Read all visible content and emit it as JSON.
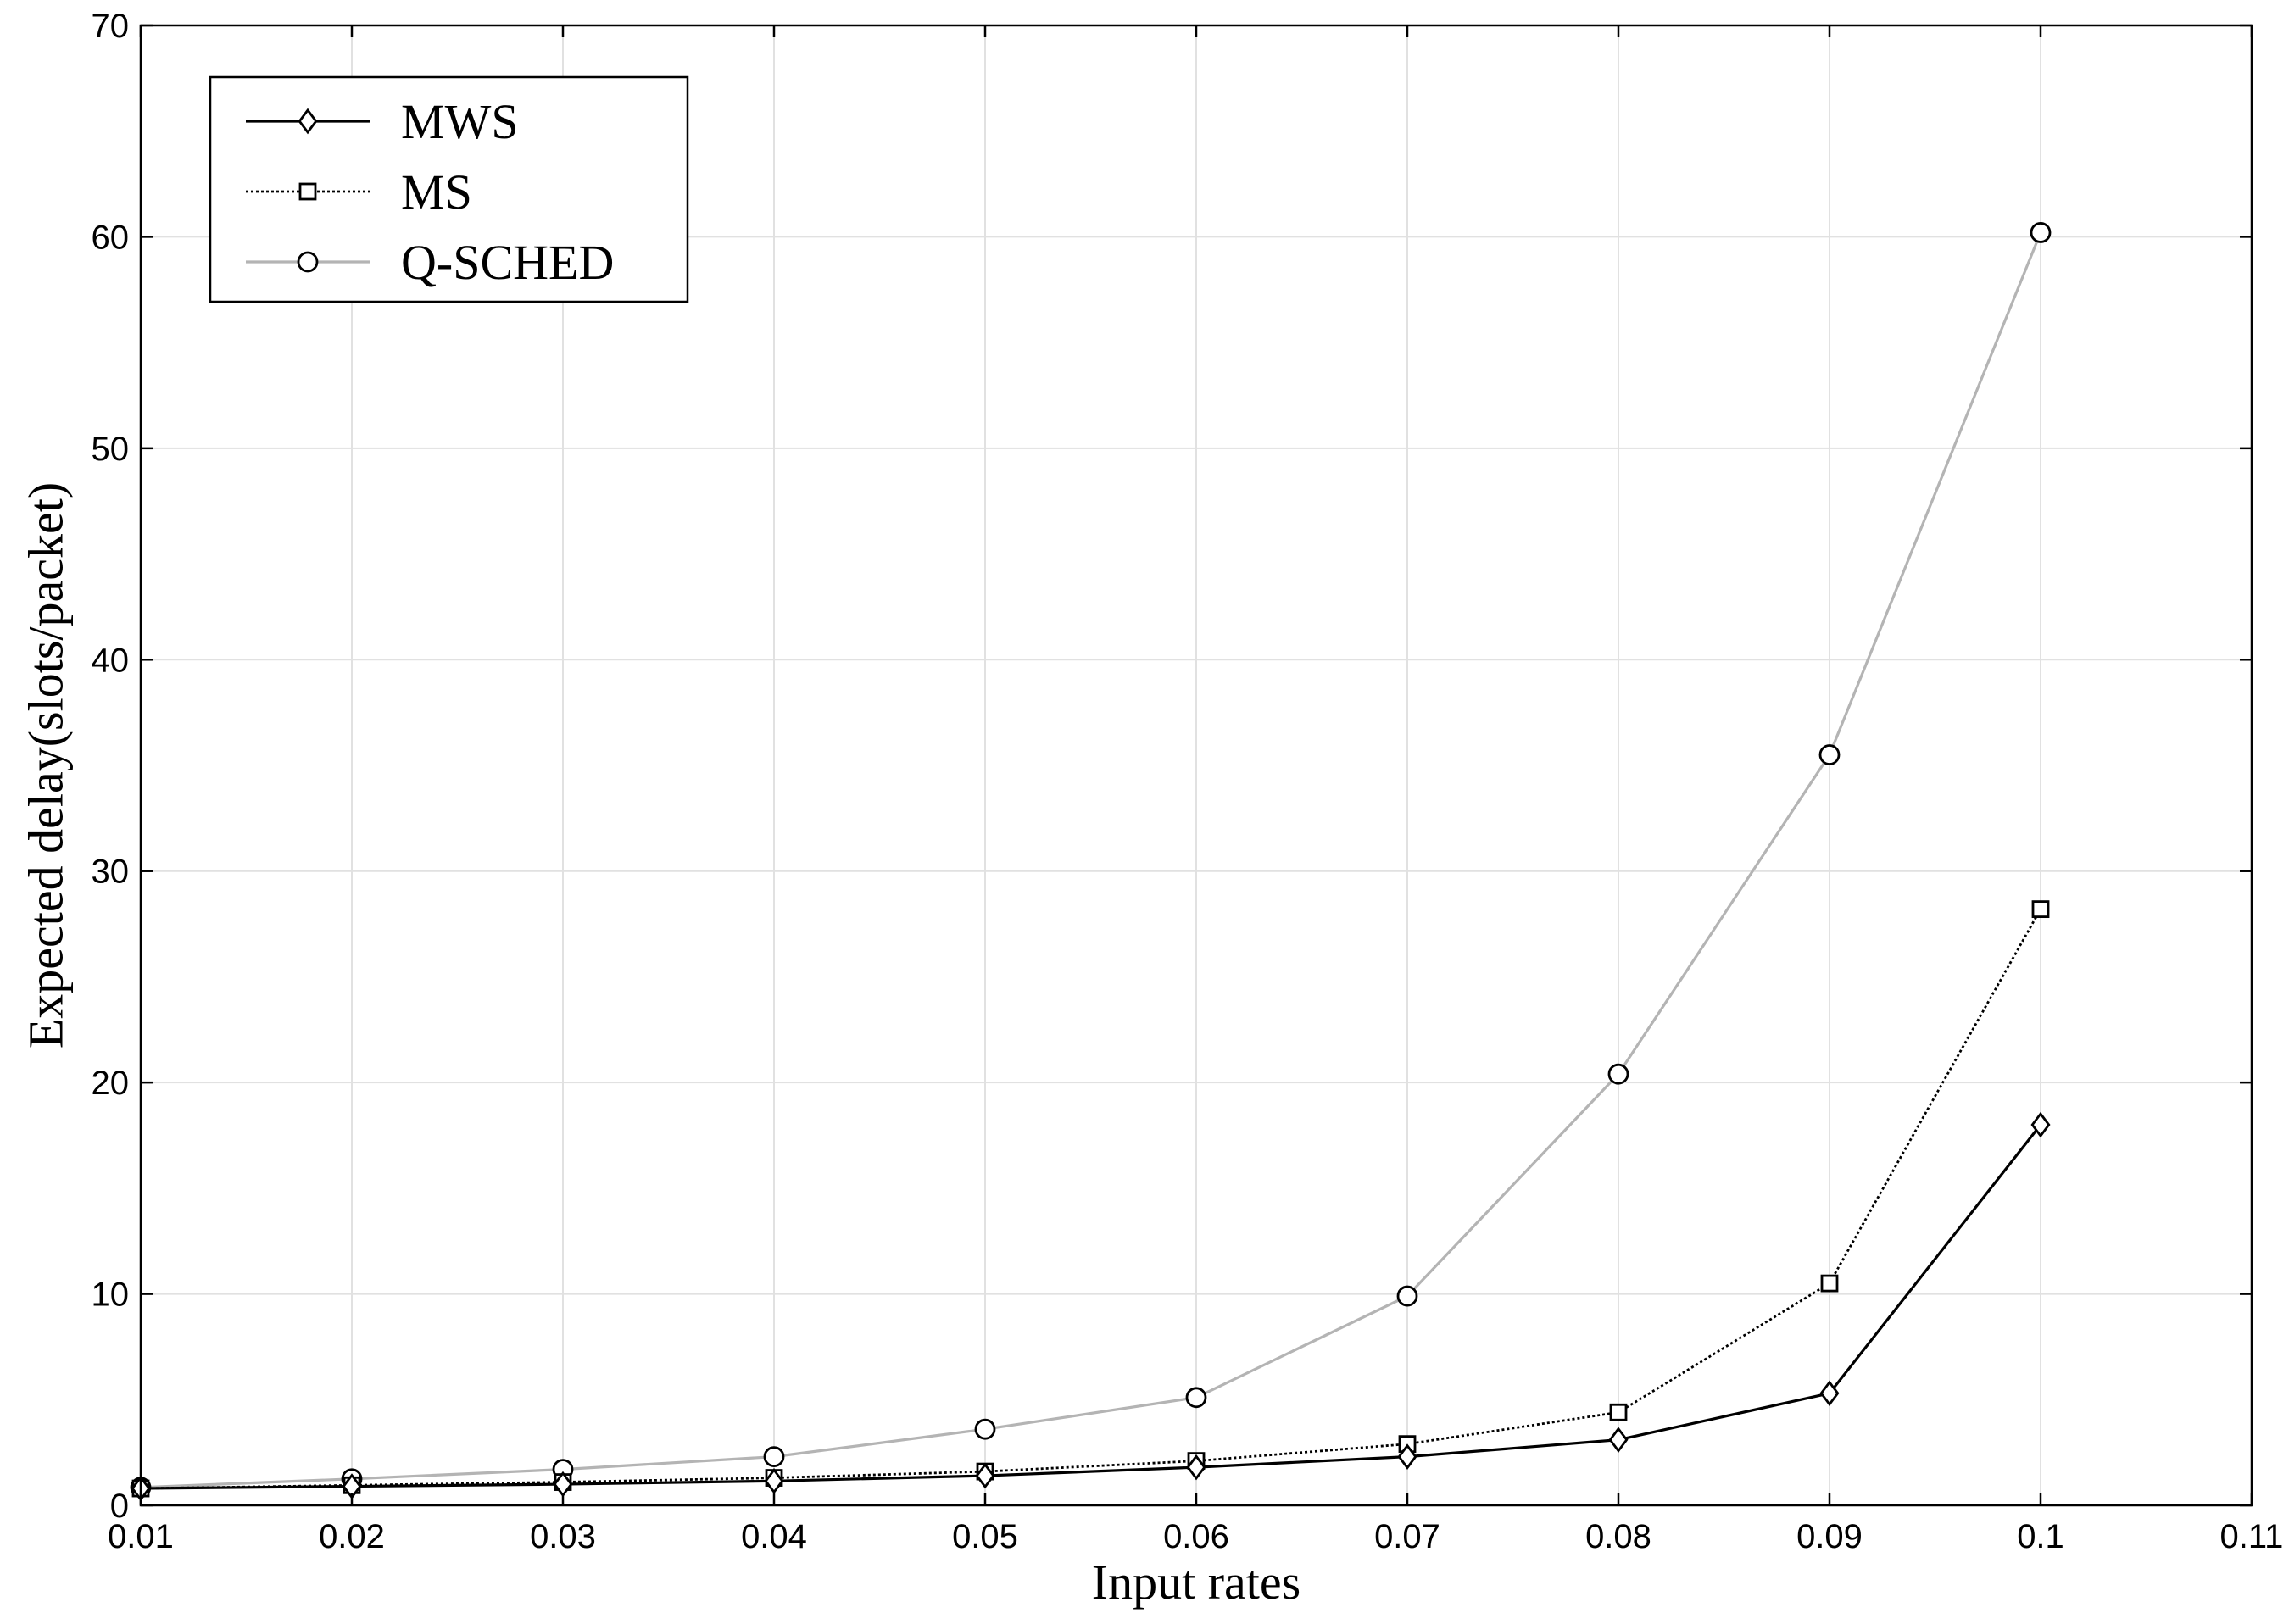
{
  "chart_data": {
    "type": "line",
    "title": "",
    "xlabel": "Input rates",
    "ylabel": "Expected delay(slots/packet)",
    "xlim": [
      0.01,
      0.11
    ],
    "ylim": [
      0,
      70
    ],
    "xticks": [
      "0.01",
      "0.02",
      "0.03",
      "0.04",
      "0.05",
      "0.06",
      "0.07",
      "0.08",
      "0.09",
      "0.1",
      "0.11"
    ],
    "yticks": [
      "0",
      "10",
      "20",
      "30",
      "40",
      "50",
      "60",
      "70"
    ],
    "grid": true,
    "legend_position": "top-left",
    "x": [
      0.01,
      0.02,
      0.03,
      0.04,
      0.05,
      0.06,
      0.07,
      0.08,
      0.09,
      0.1
    ],
    "series": [
      {
        "name": "MWS",
        "values": [
          0.8,
          0.9,
          1.0,
          1.15,
          1.4,
          1.8,
          2.3,
          3.1,
          5.3,
          18.0
        ],
        "color": "#000000",
        "line": "solid",
        "marker": "diamond"
      },
      {
        "name": "MS",
        "values": [
          0.8,
          0.95,
          1.1,
          1.3,
          1.6,
          2.1,
          2.9,
          4.4,
          10.5,
          28.2
        ],
        "color": "#000000",
        "line": "dotted",
        "marker": "square"
      },
      {
        "name": "Q-SCHED",
        "values": [
          0.85,
          1.25,
          1.7,
          2.3,
          3.6,
          5.1,
          9.9,
          20.4,
          35.5,
          60.2
        ],
        "color": "#b4b4b4",
        "line": "solid",
        "marker": "circle"
      }
    ]
  }
}
